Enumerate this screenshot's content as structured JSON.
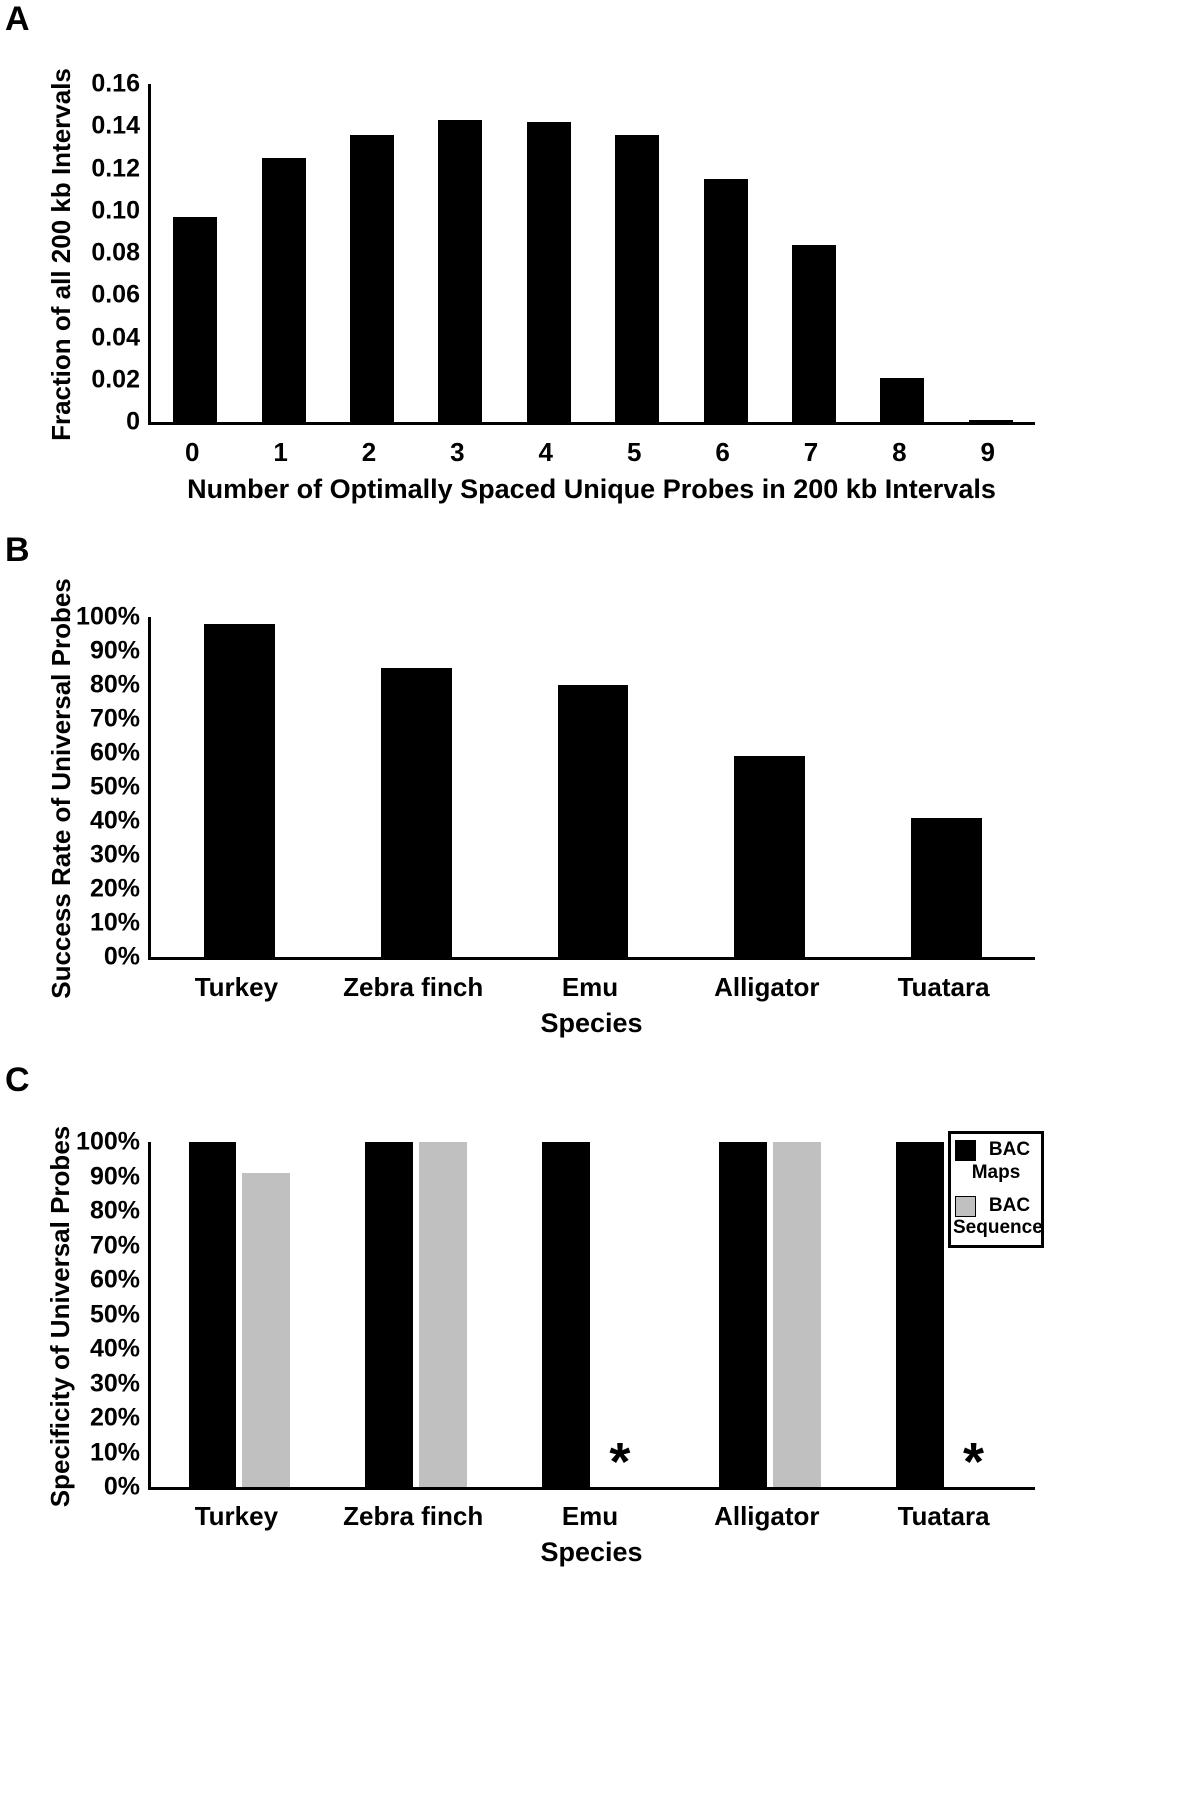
{
  "figure": {
    "background": "#ffffff",
    "panels": [
      {
        "label": "A"
      },
      {
        "label": "B"
      },
      {
        "label": "C"
      }
    ]
  },
  "chart_data": [
    {
      "type": "bar",
      "panel": "A",
      "categories": [
        "0",
        "1",
        "2",
        "3",
        "4",
        "5",
        "6",
        "7",
        "8",
        "9"
      ],
      "values": [
        0.097,
        0.125,
        0.136,
        0.143,
        0.142,
        0.136,
        0.115,
        0.084,
        0.021,
        0.001
      ],
      "xlabel": "Number of Optimally Spaced Unique Probes in 200 kb Intervals",
      "ylabel": "Fraction of all 200 kb Intervals",
      "ylim": [
        0,
        0.16
      ],
      "yticks": [
        "0.16",
        "0.14",
        "0.12",
        "0.10",
        "0.08",
        "0.06",
        "0.04",
        "0.02",
        "0"
      ],
      "bar_color": "#000000",
      "grid": false,
      "legend_position": "none",
      "bar_frac": 0.5
    },
    {
      "type": "bar",
      "panel": "B",
      "categories": [
        "Turkey",
        "Zebra finch",
        "Emu",
        "Alligator",
        "Tuatara"
      ],
      "values": [
        98,
        85,
        80,
        59,
        41
      ],
      "xlabel": "Species",
      "ylabel": "Success Rate of Universal Probes",
      "ylim": [
        0,
        100
      ],
      "yticks": [
        "100%",
        "90%",
        "80%",
        "70%",
        "60%",
        "50%",
        "40%",
        "30%",
        "20%",
        "10%",
        "0%"
      ],
      "bar_color": "#000000",
      "grid": false,
      "legend_position": "none",
      "bar_frac": 0.4
    },
    {
      "type": "bar",
      "panel": "C",
      "categories": [
        "Turkey",
        "Zebra finch",
        "Emu",
        "Alligator",
        "Tuatara"
      ],
      "series": [
        {
          "name": "BAC Maps",
          "color": "#000000",
          "values": [
            100,
            100,
            100,
            100,
            100
          ]
        },
        {
          "name": "BAC Sequence",
          "color": "#c0c0c0",
          "values": [
            91,
            100,
            null,
            100,
            null
          ]
        }
      ],
      "missing_marker": "*",
      "xlabel": "Species",
      "ylabel": "Specificity of Universal Probes",
      "ylim": [
        0,
        100
      ],
      "yticks": [
        "100%",
        "90%",
        "80%",
        "70%",
        "60%",
        "50%",
        "40%",
        "30%",
        "20%",
        "10%",
        "0%"
      ],
      "grid": false,
      "legend_position": "top-right",
      "bar_frac": 0.27,
      "group_gap": 6
    }
  ]
}
